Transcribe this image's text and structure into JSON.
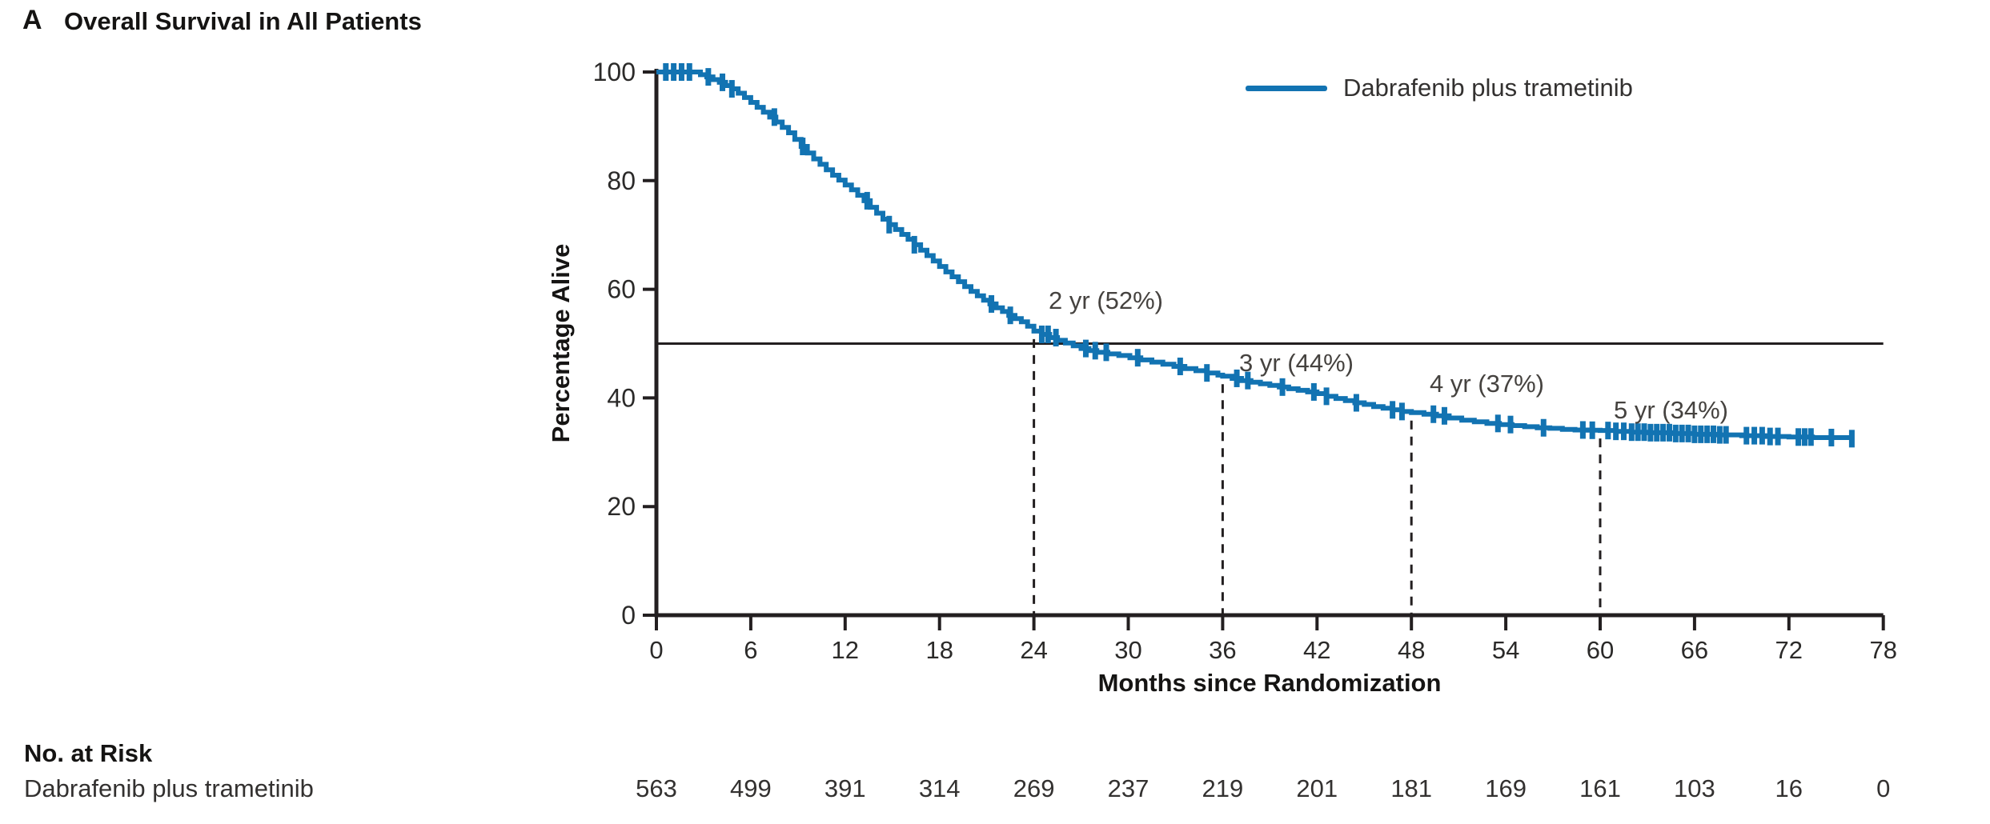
{
  "figure": {
    "panel_label": "A",
    "title": "Overall Survival in All Patients"
  },
  "legend": {
    "label": "Dabrafenib plus trametinib"
  },
  "axes": {
    "y_label": "Percentage Alive",
    "x_label": "Months since Randomization"
  },
  "risk_table": {
    "header": "No. at Risk",
    "row_label": "Dabrafenib plus trametinib",
    "months": [
      0,
      6,
      12,
      18,
      24,
      30,
      36,
      42,
      48,
      54,
      60,
      66,
      72,
      78
    ],
    "values": [
      563,
      499,
      391,
      314,
      269,
      237,
      219,
      201,
      181,
      169,
      161,
      103,
      16,
      0
    ]
  },
  "colors": {
    "curve": "#1273b2",
    "axis": "#231f20",
    "annotation_text": "#45423f",
    "reference_line": "#231f20"
  },
  "chart_data": {
    "type": "line",
    "subtype": "kaplan-meier-step",
    "title": "Overall Survival in All Patients",
    "xlabel": "Months since Randomization",
    "ylabel": "Percentage Alive",
    "xlim": [
      0,
      78
    ],
    "ylim": [
      0,
      100
    ],
    "x_ticks": [
      0,
      6,
      12,
      18,
      24,
      30,
      36,
      42,
      48,
      54,
      60,
      66,
      72,
      78
    ],
    "y_ticks": [
      0,
      20,
      40,
      60,
      80,
      100
    ],
    "grid": false,
    "legend_position": "top-right",
    "reference_line_y": 50,
    "annotations": [
      {
        "label": "2 yr (52%)",
        "month": 24,
        "percent": 52
      },
      {
        "label": "3 yr (44%)",
        "month": 36,
        "percent": 44
      },
      {
        "label": "4 yr (37%)",
        "month": 48,
        "percent": 37
      },
      {
        "label": "5 yr (34%)",
        "month": 60,
        "percent": 34
      }
    ],
    "series": [
      {
        "name": "Dabrafenib plus trametinib",
        "color": "#1273b2",
        "step_points": [
          [
            0,
            100
          ],
          [
            2.4,
            100
          ],
          [
            2.8,
            99.5
          ],
          [
            3.2,
            99.1
          ],
          [
            3.6,
            98.6
          ],
          [
            4,
            98.1
          ],
          [
            4.4,
            97.5
          ],
          [
            4.8,
            96.9
          ],
          [
            5.2,
            96.1
          ],
          [
            5.6,
            95.3
          ],
          [
            6,
            94.4
          ],
          [
            6.4,
            93.5
          ],
          [
            6.8,
            92.6
          ],
          [
            7.2,
            91.7
          ],
          [
            7.6,
            90.8
          ],
          [
            8,
            89.8
          ],
          [
            8.4,
            88.8
          ],
          [
            8.8,
            87.6
          ],
          [
            9.2,
            86.3
          ],
          [
            9.6,
            85.1
          ],
          [
            10,
            84
          ],
          [
            10.4,
            83
          ],
          [
            10.8,
            82
          ],
          [
            11.2,
            81
          ],
          [
            11.6,
            80.1
          ],
          [
            12,
            79.2
          ],
          [
            12.4,
            78.3
          ],
          [
            12.8,
            77.3
          ],
          [
            13.2,
            76.3
          ],
          [
            13.6,
            75.1
          ],
          [
            14,
            74
          ],
          [
            14.4,
            72.9
          ],
          [
            14.8,
            71.9
          ],
          [
            15.2,
            71
          ],
          [
            15.6,
            70.1
          ],
          [
            16,
            69.2
          ],
          [
            16.4,
            68.2
          ],
          [
            16.8,
            67.2
          ],
          [
            17.2,
            66.2
          ],
          [
            17.6,
            65.2
          ],
          [
            18,
            64.2
          ],
          [
            18.4,
            63.2
          ],
          [
            18.8,
            62.3
          ],
          [
            19.2,
            61.4
          ],
          [
            19.6,
            60.5
          ],
          [
            20,
            59.6
          ],
          [
            20.4,
            58.8
          ],
          [
            20.8,
            58
          ],
          [
            21.2,
            57.3
          ],
          [
            21.6,
            56.6
          ],
          [
            22,
            55.9
          ],
          [
            22.4,
            55.2
          ],
          [
            22.8,
            54.6
          ],
          [
            23.2,
            54
          ],
          [
            23.6,
            53.2
          ],
          [
            24,
            52.3
          ],
          [
            24.5,
            51.7
          ],
          [
            25,
            51.1
          ],
          [
            25.5,
            50.6
          ],
          [
            26,
            50.1
          ],
          [
            26.5,
            49.6
          ],
          [
            27,
            49.1
          ],
          [
            27.5,
            48.7
          ],
          [
            28,
            48.4
          ],
          [
            28.7,
            48.1
          ],
          [
            29.4,
            47.8
          ],
          [
            30.1,
            47.4
          ],
          [
            30.8,
            47
          ],
          [
            31.5,
            46.6
          ],
          [
            32.2,
            46.2
          ],
          [
            32.9,
            45.8
          ],
          [
            33.6,
            45.4
          ],
          [
            34.3,
            45
          ],
          [
            35,
            44.6
          ],
          [
            35.7,
            44.2
          ],
          [
            36,
            44
          ],
          [
            36.6,
            43.6
          ],
          [
            37.2,
            43.2
          ],
          [
            37.8,
            42.9
          ],
          [
            38.4,
            42.6
          ],
          [
            39,
            42.3
          ],
          [
            39.6,
            42
          ],
          [
            40.2,
            41.7
          ],
          [
            40.8,
            41.4
          ],
          [
            41.4,
            41.1
          ],
          [
            42,
            40.8
          ],
          [
            42.6,
            40.3
          ],
          [
            43.2,
            39.9
          ],
          [
            43.8,
            39.5
          ],
          [
            44.4,
            39.1
          ],
          [
            45,
            38.8
          ],
          [
            45.6,
            38.4
          ],
          [
            46.2,
            38.1
          ],
          [
            46.8,
            37.8
          ],
          [
            47.4,
            37.5
          ],
          [
            48,
            37.3
          ],
          [
            48.8,
            37
          ],
          [
            49.6,
            36.7
          ],
          [
            50.4,
            36.3
          ],
          [
            51.2,
            35.9
          ],
          [
            52,
            35.6
          ],
          [
            52.8,
            35.3
          ],
          [
            53.6,
            35.1
          ],
          [
            54.4,
            34.9
          ],
          [
            55.2,
            34.7
          ],
          [
            56,
            34.5
          ],
          [
            56.8,
            34.4
          ],
          [
            57.6,
            34.2
          ],
          [
            58.4,
            34.1
          ],
          [
            59.2,
            34.05
          ],
          [
            60,
            34
          ],
          [
            61,
            33.85
          ],
          [
            62,
            33.7
          ],
          [
            63,
            33.6
          ],
          [
            64.5,
            33.45
          ],
          [
            66,
            33.3
          ],
          [
            67.5,
            33.2
          ],
          [
            69,
            33.05
          ],
          [
            70.5,
            32.9
          ],
          [
            72,
            32.8
          ],
          [
            73.5,
            32.7
          ],
          [
            76,
            32.5
          ]
        ],
        "censor_months": [
          0.6,
          1.1,
          1.6,
          2.1,
          3.3,
          4.2,
          4.8,
          7.5,
          9.3,
          13.4,
          14.8,
          16.4,
          21.3,
          22.5,
          24.5,
          24.9,
          25.4,
          27.3,
          27.9,
          28.6,
          30.6,
          33.3,
          35.0,
          36.9,
          37.6,
          39.8,
          41.8,
          42.6,
          44.5,
          46.8,
          47.4,
          49.4,
          50.1,
          53.5,
          54.3,
          56.4,
          58.9,
          59.5,
          60.5,
          61.0,
          61.5,
          62.0,
          62.4,
          62.8,
          63.2,
          63.6,
          64.0,
          64.4,
          64.8,
          65.2,
          65.6,
          66.0,
          66.4,
          66.8,
          67.2,
          67.6,
          68.0,
          69.3,
          69.8,
          70.3,
          70.8,
          71.3,
          72.6,
          73.0,
          73.4,
          74.7,
          76.0
        ]
      }
    ]
  }
}
